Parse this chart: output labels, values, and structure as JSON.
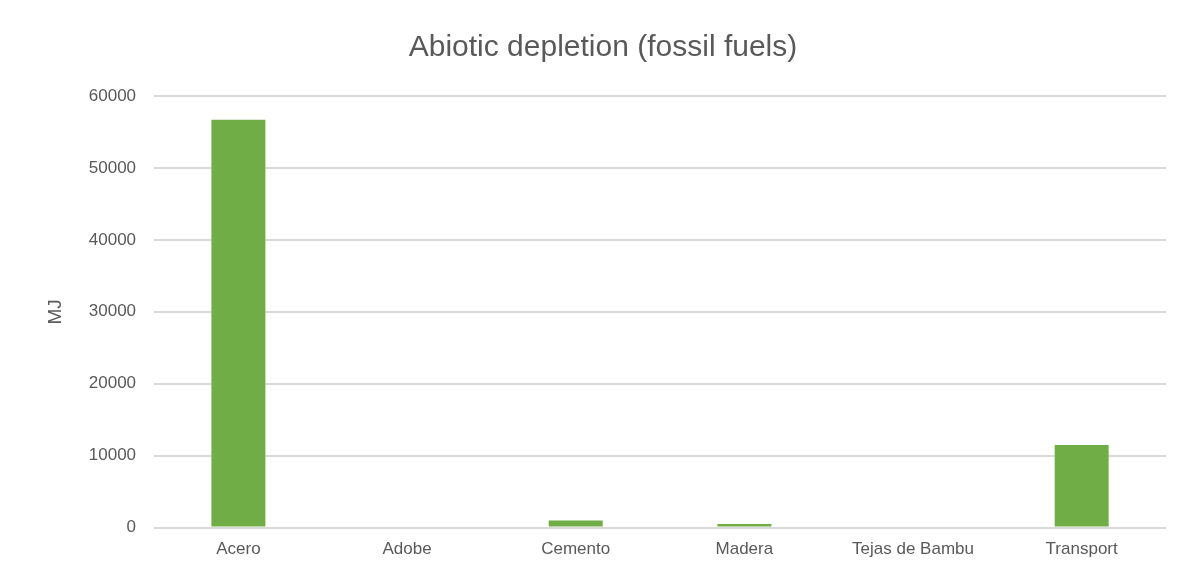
{
  "chart_data": {
    "type": "bar",
    "title": "Abiotic depletion (fossil fuels)",
    "ylabel": "MJ",
    "categories": [
      "Acero",
      "Adobe",
      "Cemento",
      "Madera",
      "Tejas de Bambu",
      "Transport"
    ],
    "values": [
      56700,
      0,
      1000,
      500,
      0,
      11500
    ],
    "color": "#70ad47",
    "ylim": [
      0,
      60000
    ],
    "yticks": [
      0,
      10000,
      20000,
      30000,
      40000,
      50000,
      60000
    ],
    "grid": "y",
    "legend": false
  }
}
